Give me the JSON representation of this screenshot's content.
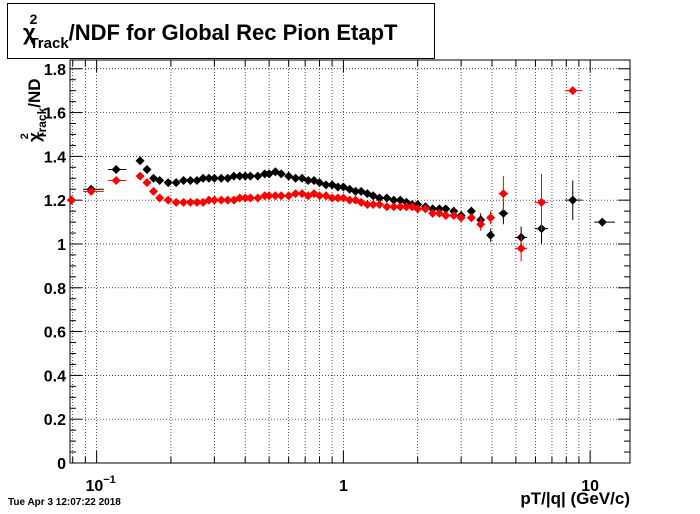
{
  "chart_data": {
    "type": "scatter",
    "title": {
      "symbol": "χ",
      "sup": "2",
      "sub": "Track",
      "text": "/NDF for Global Rec Pion EtapT"
    },
    "ylabel": {
      "symbol": "χ",
      "sup": "2",
      "sub": "Track",
      "text": "/ND"
    },
    "xlabel": "pT/|q| (GeV/c)",
    "x_scale": "log",
    "xlim": [
      0.078,
      14.5
    ],
    "ylim": [
      0,
      1.84
    ],
    "grid": true,
    "legend": "none",
    "x_tick_labels": [
      {
        "x": 0.1,
        "base": "10",
        "exp": "−1"
      },
      {
        "x": 1,
        "base": "1",
        "exp": ""
      },
      {
        "x": 10,
        "base": "10",
        "exp": ""
      }
    ],
    "y_tick_labels": [
      "0",
      "0.2",
      "0.4",
      "0.6",
      "0.8",
      "1",
      "1.2",
      "1.4",
      "1.6",
      "1.8"
    ],
    "series": [
      {
        "color": "#000000",
        "points": [
          [
            0.079,
            1.2,
            0.002,
            0.01
          ],
          [
            0.095,
            1.25,
            0.012,
            0.01
          ],
          [
            0.12,
            1.34,
            0.012,
            0.01
          ],
          [
            0.15,
            1.38,
            0.004,
            0.01
          ],
          [
            0.16,
            1.34,
            0.004,
            0.01
          ],
          [
            0.17,
            1.3,
            0.004,
            0.01
          ],
          [
            0.18,
            1.29,
            0.004,
            0.01
          ],
          [
            0.195,
            1.28,
            0.004,
            0.01
          ],
          [
            0.21,
            1.28,
            0.004,
            0.01
          ],
          [
            0.225,
            1.29,
            0.004,
            0.01
          ],
          [
            0.24,
            1.29,
            0.004,
            0.01
          ],
          [
            0.255,
            1.29,
            0.004,
            0.01
          ],
          [
            0.27,
            1.3,
            0.004,
            0.01
          ],
          [
            0.285,
            1.3,
            0.004,
            0.01
          ],
          [
            0.3,
            1.3,
            0.004,
            0.01
          ],
          [
            0.32,
            1.3,
            0.004,
            0.01
          ],
          [
            0.34,
            1.3,
            0.004,
            0.01
          ],
          [
            0.36,
            1.31,
            0.004,
            0.01
          ],
          [
            0.38,
            1.31,
            0.004,
            0.01
          ],
          [
            0.4,
            1.31,
            0.004,
            0.01
          ],
          [
            0.42,
            1.31,
            0.004,
            0.01
          ],
          [
            0.45,
            1.31,
            0.004,
            0.01
          ],
          [
            0.48,
            1.32,
            0.004,
            0.01
          ],
          [
            0.5,
            1.32,
            0.004,
            0.01
          ],
          [
            0.53,
            1.33,
            0.004,
            0.01
          ],
          [
            0.56,
            1.32,
            0.004,
            0.01
          ],
          [
            0.6,
            1.31,
            0.004,
            0.01
          ],
          [
            0.64,
            1.3,
            0.004,
            0.01
          ],
          [
            0.68,
            1.3,
            0.004,
            0.01
          ],
          [
            0.72,
            1.29,
            0.004,
            0.01
          ],
          [
            0.76,
            1.29,
            0.004,
            0.01
          ],
          [
            0.8,
            1.28,
            0.004,
            0.01
          ],
          [
            0.85,
            1.27,
            0.004,
            0.01
          ],
          [
            0.9,
            1.27,
            0.004,
            0.01
          ],
          [
            0.95,
            1.26,
            0.004,
            0.01
          ],
          [
            1.0,
            1.26,
            0.004,
            0.01
          ],
          [
            1.06,
            1.25,
            0.004,
            0.01
          ],
          [
            1.12,
            1.24,
            0.004,
            0.01
          ],
          [
            1.18,
            1.24,
            0.004,
            0.01
          ],
          [
            1.25,
            1.23,
            0.004,
            0.01
          ],
          [
            1.32,
            1.22,
            0.004,
            0.01
          ],
          [
            1.4,
            1.21,
            0.004,
            0.01
          ],
          [
            1.5,
            1.21,
            0.004,
            0.01
          ],
          [
            1.6,
            1.2,
            0.004,
            0.01
          ],
          [
            1.7,
            1.2,
            0.004,
            0.01
          ],
          [
            1.8,
            1.19,
            0.004,
            0.01
          ],
          [
            1.9,
            1.18,
            0.004,
            0.01
          ],
          [
            2.0,
            1.18,
            0.004,
            0.01
          ],
          [
            2.15,
            1.17,
            0.004,
            0.01
          ],
          [
            2.3,
            1.16,
            0.004,
            0.01
          ],
          [
            2.45,
            1.16,
            0.004,
            0.01
          ],
          [
            2.6,
            1.16,
            0.004,
            0.01
          ],
          [
            2.8,
            1.15,
            0.004,
            0.01
          ],
          [
            3.0,
            1.13,
            0.05,
            0.02
          ],
          [
            3.3,
            1.15,
            0.05,
            0.02
          ],
          [
            3.6,
            1.11,
            0.05,
            0.03
          ],
          [
            3.95,
            1.04,
            0.05,
            0.03
          ],
          [
            4.45,
            1.14,
            0.2,
            0.05
          ],
          [
            5.25,
            1.03,
            0.3,
            0.05
          ],
          [
            6.35,
            1.07,
            0.4,
            0.07
          ],
          [
            8.5,
            1.2,
            0.8,
            0.09
          ],
          [
            11.2,
            1.1,
            1.4,
            0.01
          ]
        ]
      },
      {
        "color": "#ff0000",
        "points": [
          [
            0.079,
            1.2,
            0.002,
            0.01
          ],
          [
            0.095,
            1.24,
            0.012,
            0.01
          ],
          [
            0.12,
            1.29,
            0.012,
            0.01
          ],
          [
            0.15,
            1.31,
            0.004,
            0.01
          ],
          [
            0.16,
            1.28,
            0.004,
            0.01
          ],
          [
            0.17,
            1.24,
            0.004,
            0.01
          ],
          [
            0.18,
            1.21,
            0.004,
            0.01
          ],
          [
            0.195,
            1.2,
            0.004,
            0.01
          ],
          [
            0.21,
            1.19,
            0.004,
            0.01
          ],
          [
            0.225,
            1.19,
            0.004,
            0.01
          ],
          [
            0.24,
            1.19,
            0.004,
            0.01
          ],
          [
            0.255,
            1.19,
            0.004,
            0.01
          ],
          [
            0.27,
            1.19,
            0.004,
            0.01
          ],
          [
            0.285,
            1.2,
            0.004,
            0.01
          ],
          [
            0.3,
            1.2,
            0.004,
            0.01
          ],
          [
            0.32,
            1.2,
            0.004,
            0.01
          ],
          [
            0.34,
            1.2,
            0.004,
            0.01
          ],
          [
            0.36,
            1.2,
            0.004,
            0.01
          ],
          [
            0.38,
            1.21,
            0.004,
            0.01
          ],
          [
            0.4,
            1.21,
            0.004,
            0.01
          ],
          [
            0.42,
            1.21,
            0.004,
            0.01
          ],
          [
            0.45,
            1.21,
            0.004,
            0.01
          ],
          [
            0.48,
            1.22,
            0.004,
            0.01
          ],
          [
            0.5,
            1.22,
            0.004,
            0.01
          ],
          [
            0.53,
            1.22,
            0.004,
            0.01
          ],
          [
            0.56,
            1.22,
            0.004,
            0.01
          ],
          [
            0.6,
            1.22,
            0.004,
            0.01
          ],
          [
            0.64,
            1.23,
            0.004,
            0.01
          ],
          [
            0.68,
            1.23,
            0.004,
            0.01
          ],
          [
            0.72,
            1.22,
            0.004,
            0.01
          ],
          [
            0.76,
            1.23,
            0.004,
            0.01
          ],
          [
            0.8,
            1.22,
            0.004,
            0.01
          ],
          [
            0.85,
            1.22,
            0.004,
            0.01
          ],
          [
            0.9,
            1.21,
            0.004,
            0.01
          ],
          [
            0.95,
            1.21,
            0.004,
            0.01
          ],
          [
            1.0,
            1.21,
            0.004,
            0.01
          ],
          [
            1.06,
            1.2,
            0.004,
            0.01
          ],
          [
            1.12,
            1.2,
            0.004,
            0.01
          ],
          [
            1.18,
            1.19,
            0.004,
            0.01
          ],
          [
            1.25,
            1.18,
            0.004,
            0.01
          ],
          [
            1.32,
            1.18,
            0.004,
            0.01
          ],
          [
            1.4,
            1.18,
            0.004,
            0.01
          ],
          [
            1.5,
            1.17,
            0.004,
            0.01
          ],
          [
            1.6,
            1.17,
            0.004,
            0.01
          ],
          [
            1.7,
            1.17,
            0.004,
            0.01
          ],
          [
            1.8,
            1.17,
            0.004,
            0.01
          ],
          [
            1.9,
            1.17,
            0.004,
            0.01
          ],
          [
            2.0,
            1.16,
            0.004,
            0.01
          ],
          [
            2.15,
            1.16,
            0.004,
            0.01
          ],
          [
            2.3,
            1.14,
            0.004,
            0.01
          ],
          [
            2.45,
            1.14,
            0.004,
            0.01
          ],
          [
            2.6,
            1.13,
            0.004,
            0.01
          ],
          [
            2.8,
            1.13,
            0.004,
            0.01
          ],
          [
            3.0,
            1.12,
            0.05,
            0.02
          ],
          [
            3.3,
            1.12,
            0.05,
            0.02
          ],
          [
            3.6,
            1.09,
            0.05,
            0.03
          ],
          [
            3.95,
            1.12,
            0.05,
            0.03
          ],
          [
            4.45,
            1.23,
            0.2,
            0.08
          ],
          [
            5.25,
            0.98,
            0.3,
            0.06
          ],
          [
            6.35,
            1.19,
            0.4,
            0.13
          ],
          [
            8.5,
            1.7,
            0.8,
            0.01
          ]
        ]
      }
    ]
  },
  "timestamp": "Tue Apr  3 12:07:22 2018"
}
